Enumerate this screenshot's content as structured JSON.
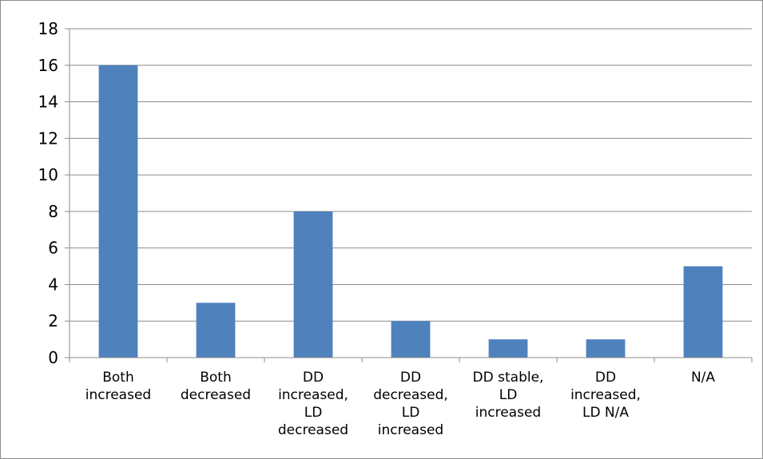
{
  "chart_data": {
    "type": "bar",
    "title": "",
    "xlabel": "",
    "ylabel": "",
    "categories": [
      [
        "Both",
        "increased"
      ],
      [
        "Both",
        "decreased"
      ],
      [
        "DD",
        "increased,",
        "LD",
        "decreased"
      ],
      [
        "DD",
        "decreased,",
        "LD",
        "increased"
      ],
      [
        "DD stable,",
        "LD",
        "increased"
      ],
      [
        "DD",
        "increased,",
        "LD N/A"
      ],
      [
        "N/A"
      ]
    ],
    "values": [
      16,
      3,
      8,
      2,
      1,
      1,
      5
    ],
    "ylim": [
      0,
      18
    ],
    "yticks": [
      0,
      2,
      4,
      6,
      8,
      10,
      12,
      14,
      16,
      18
    ],
    "grid": true,
    "legend": "none",
    "bar_color": "#4f81bd",
    "grid_color": "#8c8c8c"
  }
}
